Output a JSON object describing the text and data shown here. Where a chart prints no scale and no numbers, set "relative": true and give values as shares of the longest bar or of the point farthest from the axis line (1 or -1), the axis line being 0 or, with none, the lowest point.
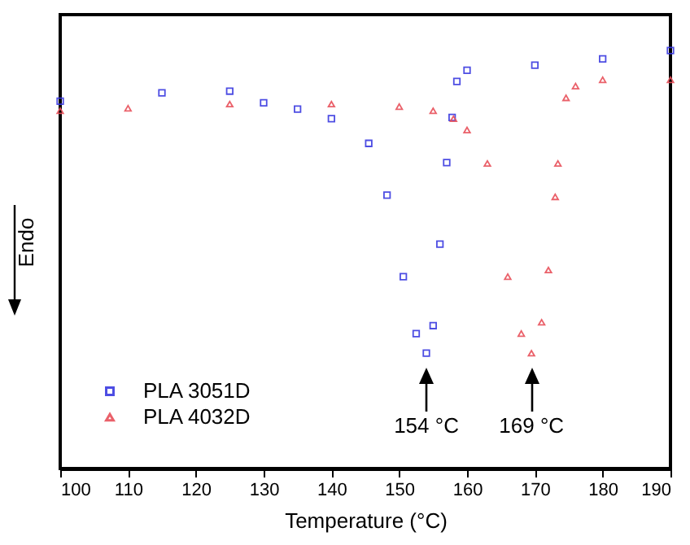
{
  "chart_data": {
    "type": "scatter",
    "relative": true,
    "xlabel": "Temperature (°C)",
    "ylabel": "Endo",
    "legend": "bottom left",
    "xlim": [
      100,
      190
    ],
    "xticks": [
      100,
      110,
      120,
      130,
      140,
      150,
      160,
      170,
      180,
      190
    ],
    "annotations": [
      {
        "text": "154 °C",
        "x": 154,
        "y": 0.276
      },
      {
        "text": "169 °C",
        "x": 169.5,
        "y": 0.276
      }
    ],
    "series": [
      {
        "name": "PLA 3051D",
        "color": "#3a3ae0",
        "marker": "square",
        "x": [
          100,
          115,
          125,
          130,
          135,
          140,
          145.5,
          148.2,
          150.6,
          152.5,
          154,
          155,
          156,
          157,
          157.8,
          158.5,
          160,
          170,
          180,
          190
        ],
        "values": [
          0.879,
          0.899,
          0.903,
          0.875,
          0.86,
          0.837,
          0.778,
          0.654,
          0.459,
          0.323,
          0.276,
          0.342,
          0.537,
          0.732,
          0.84,
          0.926,
          0.953,
          0.965,
          0.98,
          1.0
        ]
      },
      {
        "name": "PLA 4032D",
        "color": "#e8505a",
        "marker": "triangle",
        "x": [
          100,
          110,
          125,
          140,
          150,
          155,
          158,
          160,
          163,
          166,
          168,
          169.5,
          171,
          172,
          173,
          173.4,
          174.6,
          176,
          180,
          190
        ],
        "values": [
          0.856,
          0.862,
          0.872,
          0.872,
          0.866,
          0.856,
          0.837,
          0.81,
          0.73,
          0.459,
          0.323,
          0.276,
          0.35,
          0.475,
          0.65,
          0.73,
          0.887,
          0.915,
          0.93,
          0.93
        ]
      }
    ]
  }
}
